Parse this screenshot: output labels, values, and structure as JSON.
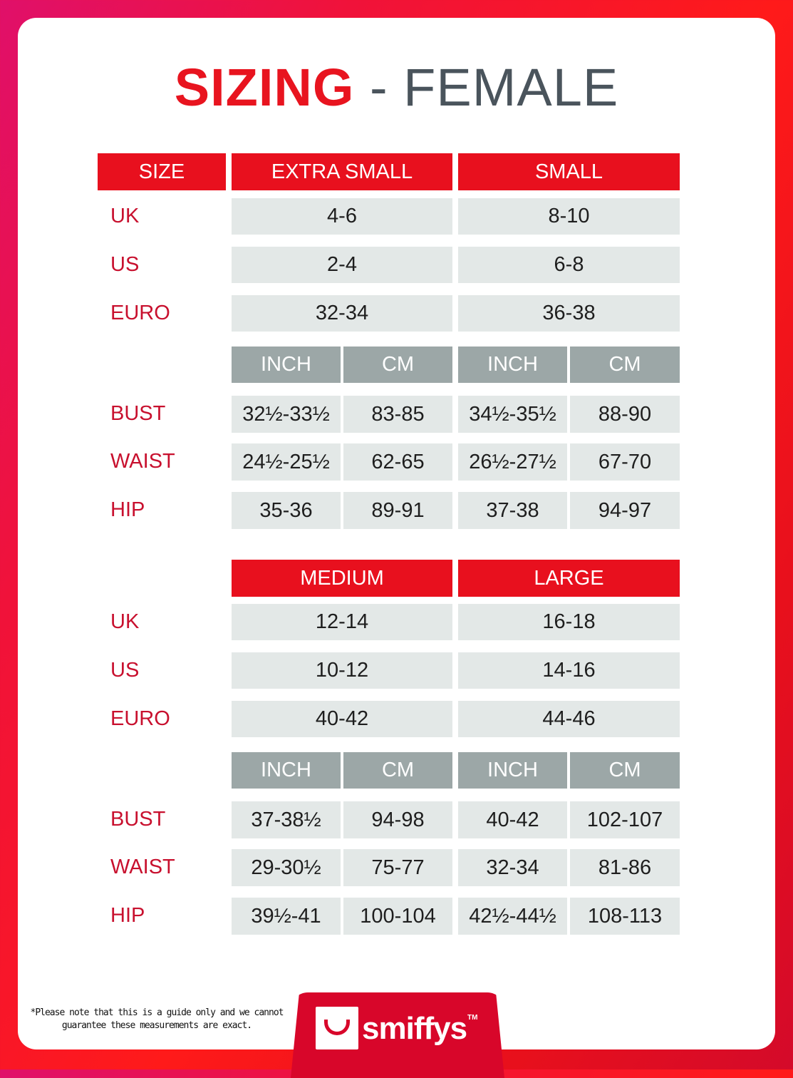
{
  "title": {
    "main": "SIZING",
    "sub": "- FEMALE"
  },
  "size_header": "SIZE",
  "row_labels": {
    "uk": "UK",
    "us": "US",
    "euro": "EURO",
    "bust": "BUST",
    "waist": "WAIST",
    "hip": "HIP"
  },
  "units": [
    "INCH",
    "CM"
  ],
  "blocks": [
    {
      "sizes": [
        {
          "name": "EXTRA SMALL",
          "uk": "4-6",
          "us": "2-4",
          "euro": "32-34",
          "bust": [
            "32½-33½",
            "83-85"
          ],
          "waist": [
            "24½-25½",
            "62-65"
          ],
          "hip": [
            "35-36",
            "89-91"
          ]
        },
        {
          "name": "SMALL",
          "uk": "8-10",
          "us": "6-8",
          "euro": "36-38",
          "bust": [
            "34½-35½",
            "88-90"
          ],
          "waist": [
            "26½-27½",
            "67-70"
          ],
          "hip": [
            "37-38",
            "94-97"
          ]
        }
      ]
    },
    {
      "sizes": [
        {
          "name": "MEDIUM",
          "uk": "12-14",
          "us": "10-12",
          "euro": "40-42",
          "bust": [
            "37-38½",
            "94-98"
          ],
          "waist": [
            "29-30½",
            "75-77"
          ],
          "hip": [
            "39½-41",
            "100-104"
          ]
        },
        {
          "name": "LARGE",
          "uk": "16-18",
          "us": "14-16",
          "euro": "44-46",
          "bust": [
            "40-42",
            "102-107"
          ],
          "waist": [
            "32-34",
            "81-86"
          ],
          "hip": [
            "42½-44½",
            "108-113"
          ]
        }
      ]
    }
  ],
  "footnote": "*Please note that this is a guide only and we cannot guarantee these measurements are exact.",
  "logo": {
    "text": "smiffys",
    "tm": "TM"
  },
  "colors": {
    "red": "#e8101e",
    "label_red": "#c8102e",
    "unit_grey": "#9ca7a7",
    "cell_bg": "#e3e8e7",
    "title_grey": "#4a545c"
  }
}
